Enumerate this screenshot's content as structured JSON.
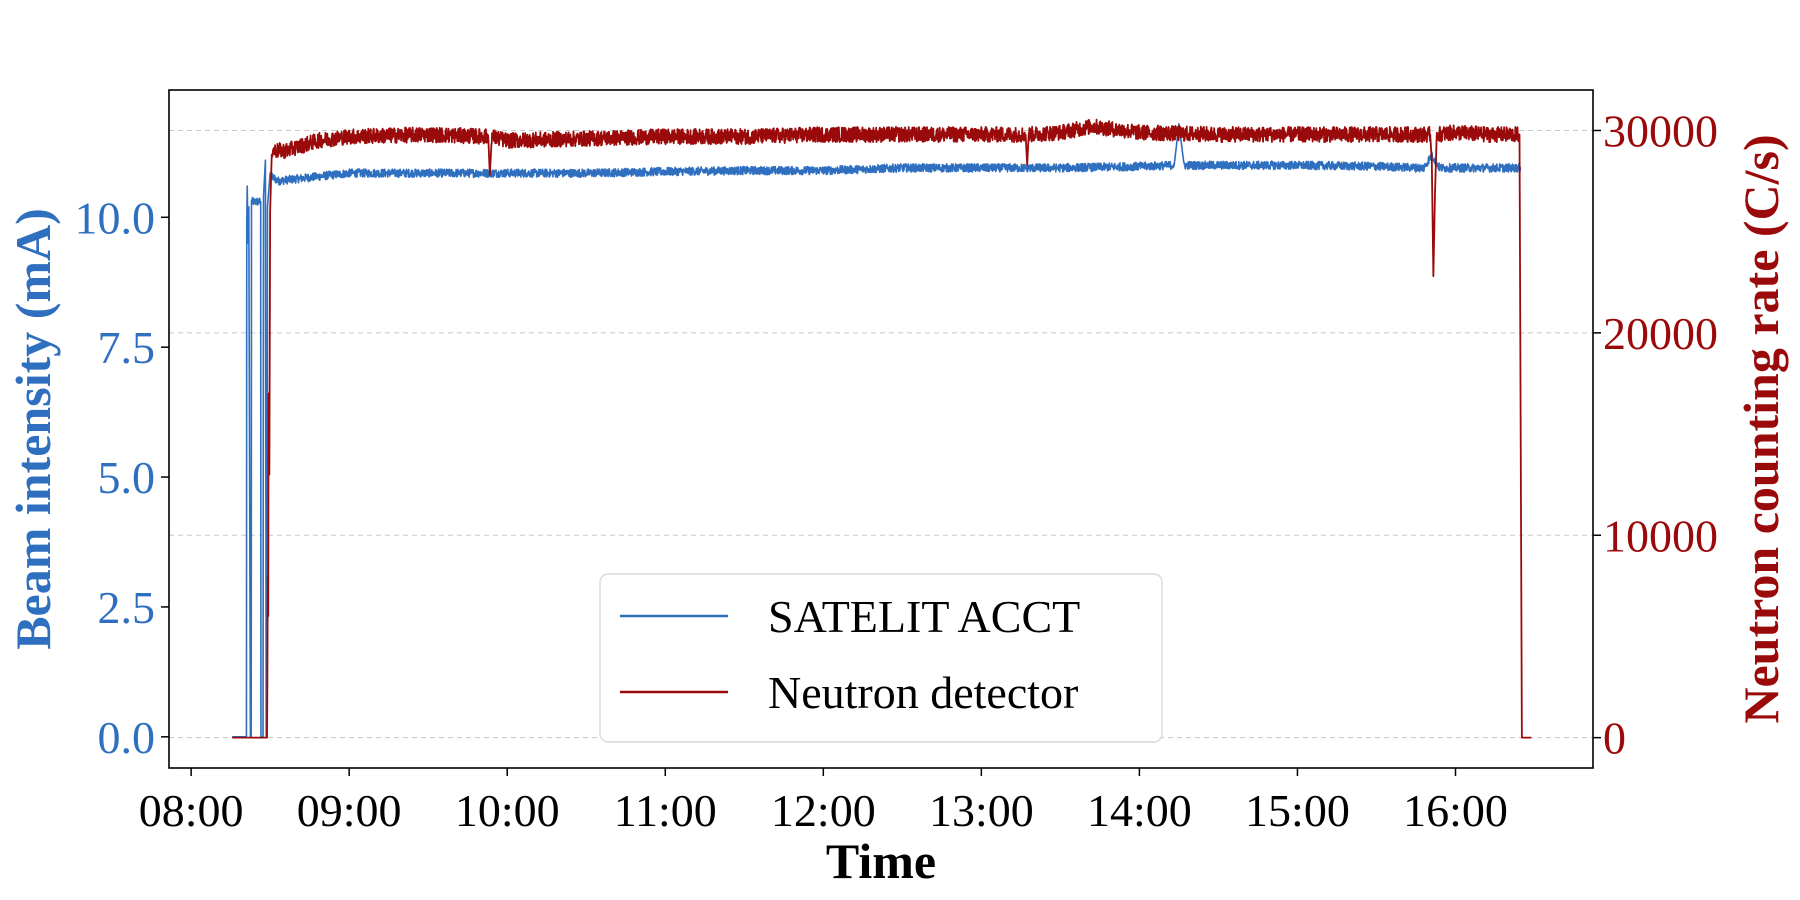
{
  "chart_data": {
    "type": "line",
    "title": "",
    "xlabel": "Time",
    "ylabel_left": "Beam intensity (mA)",
    "ylabel_right": "Neutron counting rate (C/s)",
    "x_ticks": [
      "08:00",
      "09:00",
      "10:00",
      "11:00",
      "12:00",
      "13:00",
      "14:00",
      "15:00",
      "16:00"
    ],
    "xlim_hours": [
      7.86,
      16.87
    ],
    "ylim_left": [
      -0.6,
      12.45
    ],
    "ylim_right": [
      -1500,
      32000
    ],
    "yticks_left": [
      {
        "value": 0.0,
        "label": "0.0"
      },
      {
        "value": 2.5,
        "label": "2.5"
      },
      {
        "value": 5.0,
        "label": "5.0"
      },
      {
        "value": 7.5,
        "label": "7.5"
      },
      {
        "value": 10.0,
        "label": "10.0"
      }
    ],
    "yticks_right": [
      {
        "value": 0,
        "label": "0"
      },
      {
        "value": 10000,
        "label": "10000"
      },
      {
        "value": 20000,
        "label": "20000"
      },
      {
        "value": 30000,
        "label": "30000"
      }
    ],
    "grid": "horizontal dashed",
    "legend_position": "lower center",
    "series": [
      {
        "name": "SATELIT ACCT",
        "axis": "left",
        "color": "#2f6fbf",
        "points": [
          [
            8.26,
            0.0
          ],
          [
            8.35,
            0.0
          ],
          [
            8.352,
            9.9
          ],
          [
            8.355,
            10.6
          ],
          [
            8.36,
            9.5
          ],
          [
            8.365,
            10.2
          ],
          [
            8.375,
            0.0
          ],
          [
            8.38,
            0.0
          ],
          [
            8.382,
            10.3
          ],
          [
            8.44,
            10.3
          ],
          [
            8.442,
            0.0
          ],
          [
            8.455,
            0.0
          ],
          [
            8.458,
            10.4
          ],
          [
            8.47,
            11.1
          ],
          [
            8.475,
            0.0
          ],
          [
            8.48,
            0.0
          ],
          [
            8.483,
            10.2
          ],
          [
            8.5,
            10.8
          ],
          [
            8.55,
            10.7
          ],
          [
            8.7,
            10.75
          ],
          [
            9.0,
            10.85
          ],
          [
            9.5,
            10.85
          ],
          [
            10.0,
            10.85
          ],
          [
            10.5,
            10.85
          ],
          [
            11.0,
            10.88
          ],
          [
            11.5,
            10.9
          ],
          [
            12.0,
            10.9
          ],
          [
            12.5,
            10.95
          ],
          [
            13.0,
            10.95
          ],
          [
            13.5,
            10.95
          ],
          [
            14.0,
            10.98
          ],
          [
            14.22,
            11.0
          ],
          [
            14.25,
            11.8
          ],
          [
            14.28,
            11.0
          ],
          [
            14.5,
            11.0
          ],
          [
            15.0,
            11.0
          ],
          [
            15.5,
            10.98
          ],
          [
            15.8,
            10.95
          ],
          [
            15.85,
            11.2
          ],
          [
            15.9,
            10.95
          ],
          [
            16.2,
            10.95
          ],
          [
            16.41,
            10.95
          ],
          [
            16.415,
            10.95
          ]
        ],
        "noise_amplitude": 0.08
      },
      {
        "name": "Neutron detector",
        "axis": "right",
        "color": "#9b0a0a",
        "points": [
          [
            8.26,
            0
          ],
          [
            8.48,
            0
          ],
          [
            8.482,
            2000
          ],
          [
            8.485,
            8000
          ],
          [
            8.488,
            6000
          ],
          [
            8.49,
            17000
          ],
          [
            8.495,
            13000
          ],
          [
            8.5,
            26000
          ],
          [
            8.51,
            29000
          ],
          [
            8.6,
            29000
          ],
          [
            8.8,
            29500
          ],
          [
            9.0,
            29700
          ],
          [
            9.5,
            29800
          ],
          [
            9.88,
            29700
          ],
          [
            9.89,
            27800
          ],
          [
            9.9,
            29700
          ],
          [
            10.0,
            29500
          ],
          [
            10.5,
            29600
          ],
          [
            11.0,
            29700
          ],
          [
            11.5,
            29700
          ],
          [
            12.0,
            29800
          ],
          [
            12.5,
            29800
          ],
          [
            13.0,
            29800
          ],
          [
            13.28,
            29800
          ],
          [
            13.29,
            28300
          ],
          [
            13.3,
            29800
          ],
          [
            13.5,
            29900
          ],
          [
            13.7,
            30200
          ],
          [
            14.0,
            29900
          ],
          [
            14.5,
            29800
          ],
          [
            15.0,
            29800
          ],
          [
            15.5,
            29800
          ],
          [
            15.84,
            29800
          ],
          [
            15.85,
            28500
          ],
          [
            15.86,
            22800
          ],
          [
            15.87,
            26800
          ],
          [
            15.88,
            29800
          ],
          [
            16.0,
            29900
          ],
          [
            16.2,
            29800
          ],
          [
            16.4,
            29800
          ],
          [
            16.405,
            29800
          ],
          [
            16.42,
            0
          ],
          [
            16.48,
            0
          ]
        ],
        "noise_amplitude": 380
      }
    ]
  },
  "legend": {
    "items": [
      {
        "label": "SATELIT ACCT",
        "color": "#2f6fbf"
      },
      {
        "label": "Neutron detector",
        "color": "#9b0a0a"
      }
    ]
  },
  "colors": {
    "left_axis": "#2f6fbf",
    "right_axis": "#9b0a0a",
    "grid": "#c8c8c8"
  }
}
